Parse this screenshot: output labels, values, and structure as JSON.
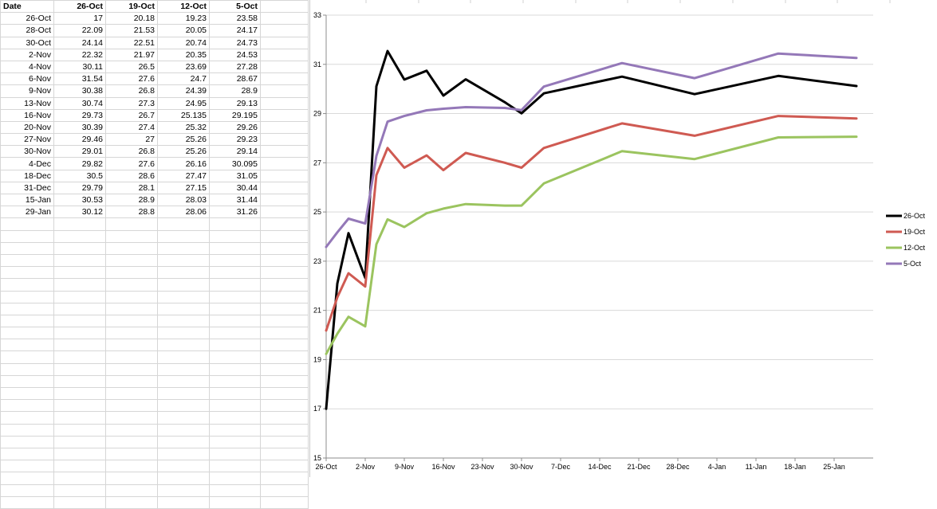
{
  "sheet": {
    "headers": [
      "Date",
      "26-Oct",
      "19-Oct",
      "12-Oct",
      "5-Oct"
    ],
    "rows": [
      [
        "26-Oct",
        "17",
        "20.18",
        "19.23",
        "23.58"
      ],
      [
        "28-Oct",
        "22.09",
        "21.53",
        "20.05",
        "24.17"
      ],
      [
        "30-Oct",
        "24.14",
        "22.51",
        "20.74",
        "24.73"
      ],
      [
        "2-Nov",
        "22.32",
        "21.97",
        "20.35",
        "24.53"
      ],
      [
        "4-Nov",
        "30.11",
        "26.5",
        "23.69",
        "27.28"
      ],
      [
        "6-Nov",
        "31.54",
        "27.6",
        "24.7",
        "28.67"
      ],
      [
        "9-Nov",
        "30.38",
        "26.8",
        "24.39",
        "28.9"
      ],
      [
        "13-Nov",
        "30.74",
        "27.3",
        "24.95",
        "29.13"
      ],
      [
        "16-Nov",
        "29.73",
        "26.7",
        "25.135",
        "29.195"
      ],
      [
        "20-Nov",
        "30.39",
        "27.4",
        "25.32",
        "29.26"
      ],
      [
        "27-Nov",
        "29.46",
        "27",
        "25.26",
        "29.23"
      ],
      [
        "30-Nov",
        "29.01",
        "26.8",
        "25.26",
        "29.14"
      ],
      [
        "4-Dec",
        "29.82",
        "27.6",
        "26.16",
        "30.095"
      ],
      [
        "18-Dec",
        "30.5",
        "28.6",
        "27.47",
        "31.05"
      ],
      [
        "31-Dec",
        "29.79",
        "28.1",
        "27.15",
        "30.44"
      ],
      [
        "15-Jan",
        "30.53",
        "28.9",
        "28.03",
        "31.44"
      ],
      [
        "29-Jan",
        "30.12",
        "28.8",
        "28.06",
        "31.26"
      ]
    ]
  },
  "chart_data": {
    "type": "line",
    "title": "",
    "xlabel": "",
    "ylabel": "",
    "ylim": [
      15,
      33
    ],
    "yticks": [
      15,
      17,
      19,
      21,
      23,
      25,
      27,
      29,
      31,
      33
    ],
    "xticks": [
      "26-Oct",
      "2-Nov",
      "9-Nov",
      "16-Nov",
      "23-Nov",
      "30-Nov",
      "7-Dec",
      "14-Dec",
      "21-Dec",
      "28-Dec",
      "4-Jan",
      "11-Jan",
      "18-Jan",
      "25-Jan"
    ],
    "x": [
      "26-Oct",
      "28-Oct",
      "30-Oct",
      "2-Nov",
      "4-Nov",
      "6-Nov",
      "9-Nov",
      "13-Nov",
      "16-Nov",
      "20-Nov",
      "27-Nov",
      "30-Nov",
      "4-Dec",
      "18-Dec",
      "31-Dec",
      "15-Jan",
      "29-Jan"
    ],
    "grid": "horizontal",
    "legend_position": "right",
    "series": [
      {
        "name": "26-Oct",
        "color": "#000000",
        "values": [
          17,
          22.09,
          24.14,
          22.32,
          30.11,
          31.54,
          30.38,
          30.74,
          29.73,
          30.39,
          29.46,
          29.01,
          29.82,
          30.5,
          29.79,
          30.53,
          30.12
        ]
      },
      {
        "name": "19-Oct",
        "color": "#cf5a52",
        "values": [
          20.18,
          21.53,
          22.51,
          21.97,
          26.5,
          27.6,
          26.8,
          27.3,
          26.7,
          27.4,
          27,
          26.8,
          27.6,
          28.6,
          28.1,
          28.9,
          28.8
        ]
      },
      {
        "name": "12-Oct",
        "color": "#9bc45f",
        "values": [
          19.23,
          20.05,
          20.74,
          20.35,
          23.69,
          24.7,
          24.39,
          24.95,
          25.135,
          25.32,
          25.26,
          25.26,
          26.16,
          27.47,
          27.15,
          28.03,
          28.06
        ]
      },
      {
        "name": "5-Oct",
        "color": "#9478b8",
        "values": [
          23.58,
          24.17,
          24.73,
          24.53,
          27.28,
          28.67,
          28.9,
          29.13,
          29.195,
          29.26,
          29.23,
          29.14,
          30.095,
          31.05,
          30.44,
          31.44,
          31.26
        ]
      }
    ]
  }
}
